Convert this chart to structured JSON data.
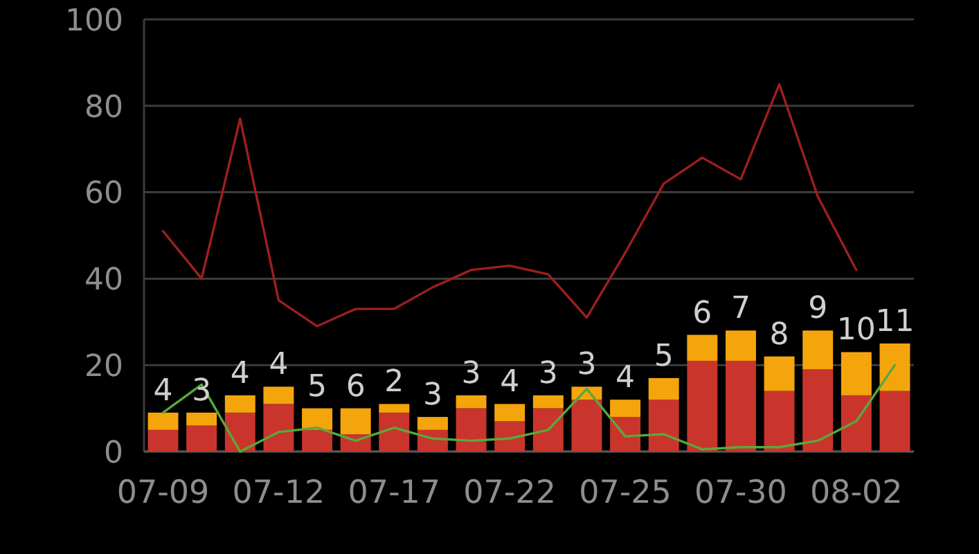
{
  "chart_data": {
    "type": "bar",
    "stacked": true,
    "categories": [
      "07-09",
      null,
      null,
      "07-12",
      null,
      null,
      "07-17",
      null,
      null,
      "07-22",
      null,
      null,
      "07-25",
      null,
      null,
      "07-30",
      null,
      null,
      "08-02",
      null
    ],
    "series": [
      {
        "color": "#c9352c",
        "values": [
          5,
          6,
          9,
          11,
          5,
          4,
          9,
          5,
          10,
          7,
          10,
          12,
          8,
          12,
          21,
          21,
          14,
          19,
          13,
          14
        ]
      },
      {
        "color": "#f5a50c",
        "values": [
          4,
          3,
          4,
          4,
          5,
          6,
          2,
          3,
          3,
          4,
          3,
          3,
          4,
          5,
          6,
          7,
          8,
          9,
          10,
          11
        ],
        "value_labels": [
          "4",
          "3",
          "4",
          "4",
          "5",
          "6",
          "2",
          "3",
          "3",
          "4",
          "3",
          "3",
          "4",
          "5",
          "6",
          "7",
          "8",
          "9",
          "10",
          "11"
        ]
      },
      {
        "type": "line",
        "color": "#9c1f1f",
        "values": [
          51,
          40,
          77,
          35,
          29,
          33,
          33,
          38,
          42,
          43,
          41,
          31,
          46,
          62,
          68,
          63,
          85,
          59,
          42,
          null
        ]
      },
      {
        "type": "line",
        "color": "#5aa83a",
        "values": [
          9,
          15.5,
          0,
          4.5,
          5.5,
          2.5,
          5.5,
          3,
          2.5,
          3,
          5,
          14.5,
          3.5,
          4,
          0.5,
          1,
          1,
          2.5,
          7,
          20
        ]
      }
    ],
    "ylim": [
      0,
      100
    ],
    "yticks": [
      0,
      20,
      40,
      60,
      80,
      100
    ],
    "grid": "y"
  }
}
